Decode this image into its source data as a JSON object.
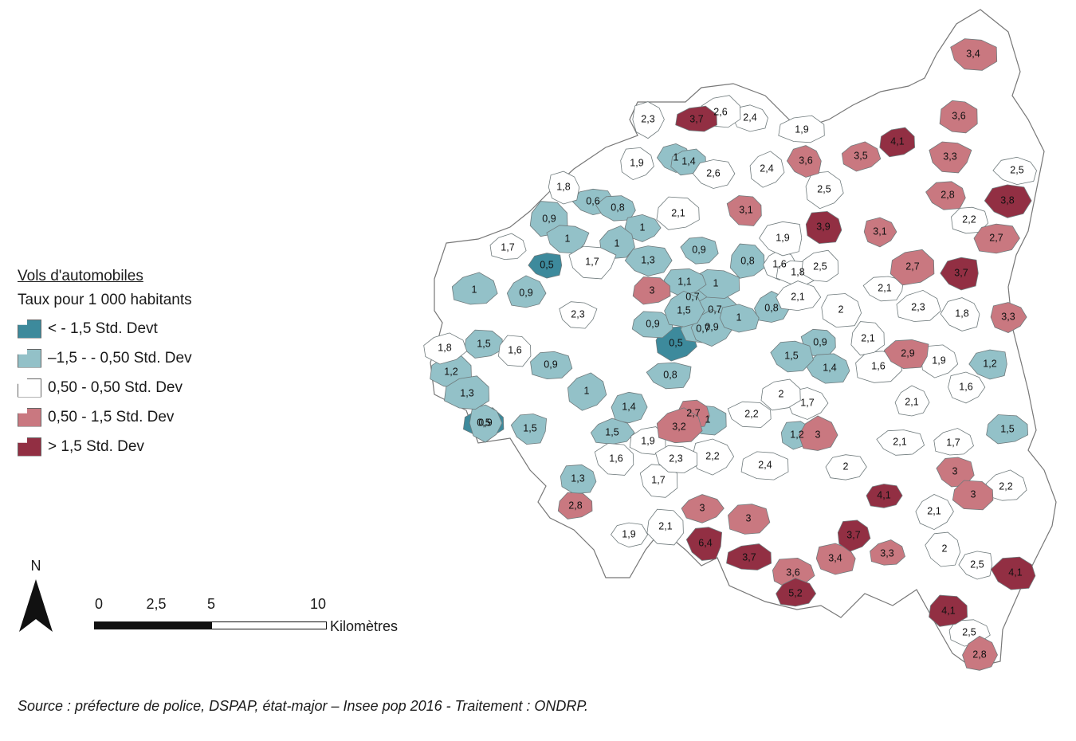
{
  "legend": {
    "title": "Vols d'automobiles",
    "subtitle": "Taux pour 1 000 habitants",
    "classes": [
      {
        "label": "< - 1,5 Std. Devt",
        "color": "#3d8a9c"
      },
      {
        "label": "–1,5 - - 0,50 Std. Dev",
        "color": "#93c1c8"
      },
      {
        "label": "0,50 - 0,50 Std. Dev",
        "color": "#ffffff"
      },
      {
        "label": "0,50 - 1,5 Std. Dev",
        "color": "#c97880"
      },
      {
        "label": "> 1,5 Std. Dev",
        "color": "#922f43"
      }
    ]
  },
  "north_label": "N",
  "scale": {
    "ticks": [
      "0",
      "2,5",
      "5",
      "10"
    ],
    "unit": "Kilomètres"
  },
  "source": "Source : préfecture de police, DSPAP, état-major – Insee pop 2016 - Traitement : ONDRP.",
  "region_values": [
    "0,5",
    "0,5",
    "0,5",
    "0,6",
    "0,7",
    "0,7",
    "0,7",
    "0,8",
    "0,8",
    "0,8",
    "0,8",
    "0,9",
    "0,9",
    "0,9",
    "0,9",
    "0,9",
    "0,9",
    "0,9",
    "0,9",
    "1",
    "1",
    "1",
    "1",
    "1",
    "1",
    "1",
    "1",
    "1",
    "1,1",
    "1,2",
    "1,2",
    "1,2",
    "1,3",
    "1,3",
    "1,3",
    "1,4",
    "1,4",
    "1,4",
    "1,5",
    "1,5",
    "1,5",
    "1,5",
    "1,5",
    "1,5",
    "1,6",
    "1,6",
    "1,6",
    "1,6",
    "1,6",
    "1,7",
    "1,7",
    "1,7",
    "1,7",
    "1,7",
    "1,8",
    "1,8",
    "1,8",
    "1,8",
    "1,9",
    "1,9",
    "1,9",
    "1,9",
    "1,9",
    "1,9",
    "2",
    "2",
    "2",
    "2",
    "2,1",
    "2,1",
    "2,1",
    "2,1",
    "2,1",
    "2,1",
    "2,1",
    "2,1",
    "2,2",
    "2,2",
    "2,2",
    "2,2",
    "2,3",
    "2,3",
    "2,3",
    "2,3",
    "2,4",
    "2,4",
    "2,4",
    "2,5",
    "2,5",
    "2,5",
    "2,5",
    "2,5",
    "2,6",
    "2,6",
    "2,7",
    "2,7",
    "2,7",
    "2,8",
    "2,8",
    "2,8",
    "2,9",
    "3",
    "3",
    "3",
    "3",
    "3",
    "3",
    "3,1",
    "3,1",
    "3,2",
    "3,3",
    "3,3",
    "3,3",
    "3,4",
    "3,4",
    "3,5",
    "3,6",
    "3,6",
    "3,6",
    "3,7",
    "3,7",
    "3,7",
    "3,7",
    "3,8",
    "3,9",
    "4,1",
    "4,1",
    "4,1",
    "4,1",
    "5,2",
    "6,4"
  ]
}
